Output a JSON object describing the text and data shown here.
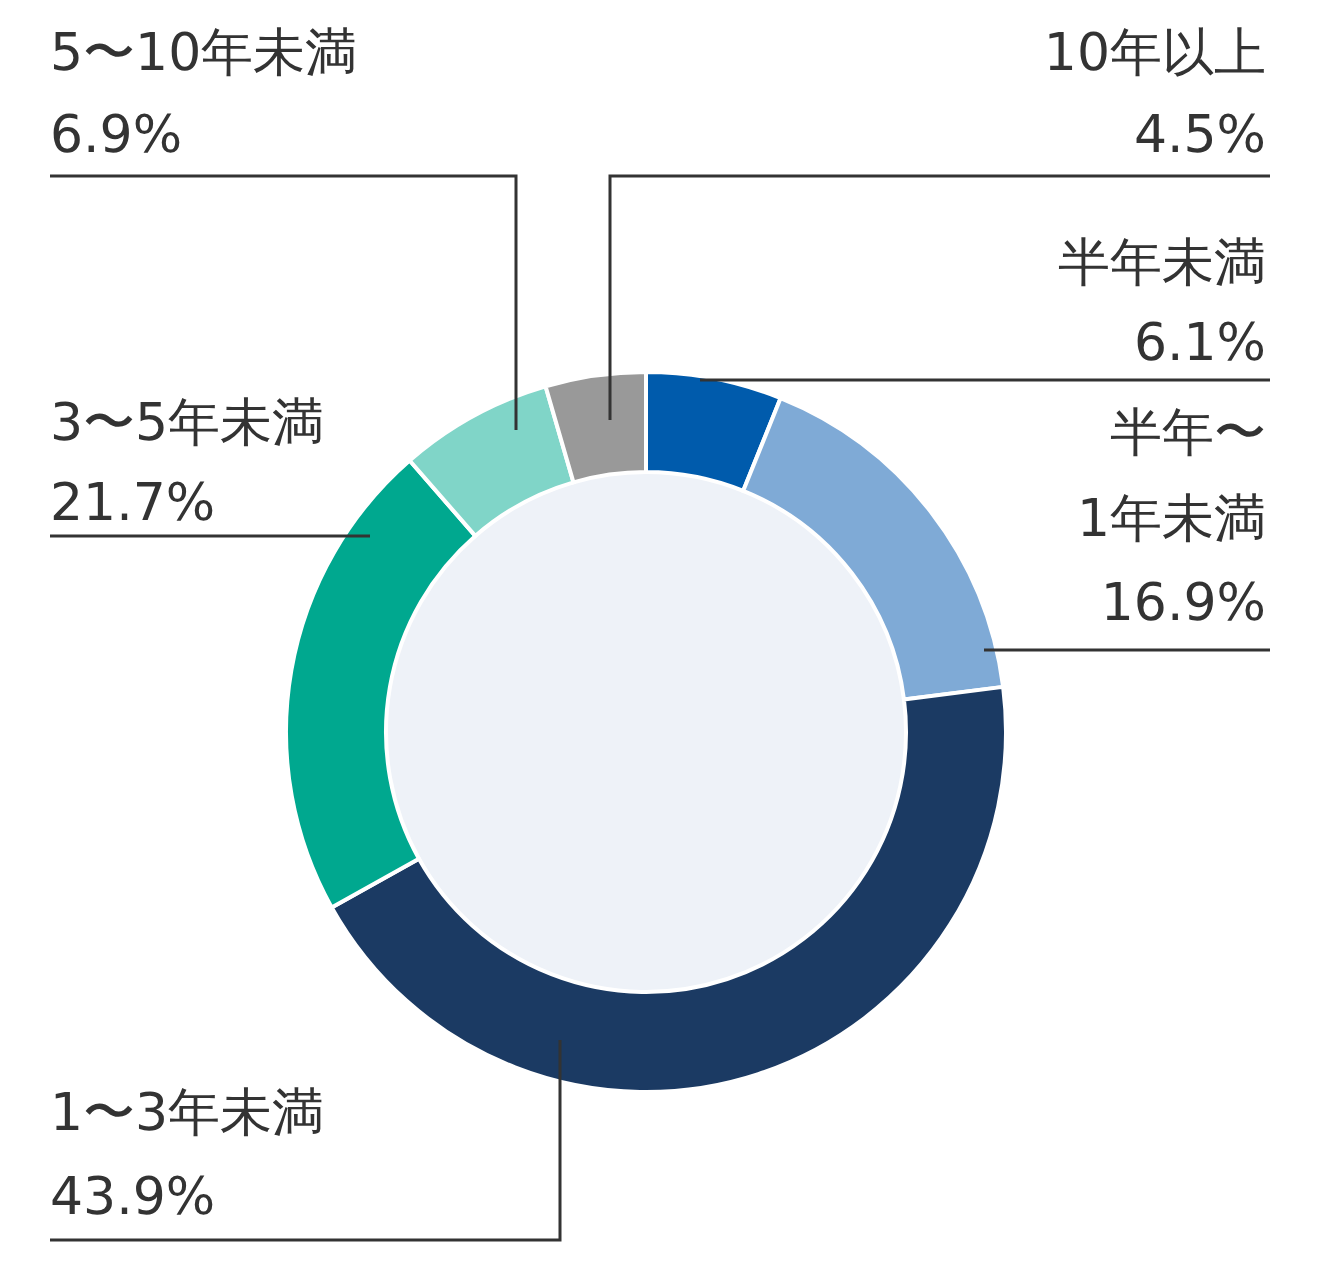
{
  "chart_data": {
    "type": "donut",
    "categories": [
      "半年未満",
      "半年〜1年未満",
      "1〜3年未満",
      "3〜5年未満",
      "5〜10年未満",
      "10年以上"
    ],
    "values": [
      6.1,
      16.9,
      43.9,
      21.7,
      6.9,
      4.5
    ],
    "value_labels": [
      "6.1%",
      "16.9%",
      "43.9%",
      "21.7%",
      "6.9%",
      "4.5%"
    ],
    "colors": [
      "#005bac",
      "#7faad6",
      "#1b3a63",
      "#00a88f",
      "#80d5c8",
      "#999999"
    ]
  }
}
